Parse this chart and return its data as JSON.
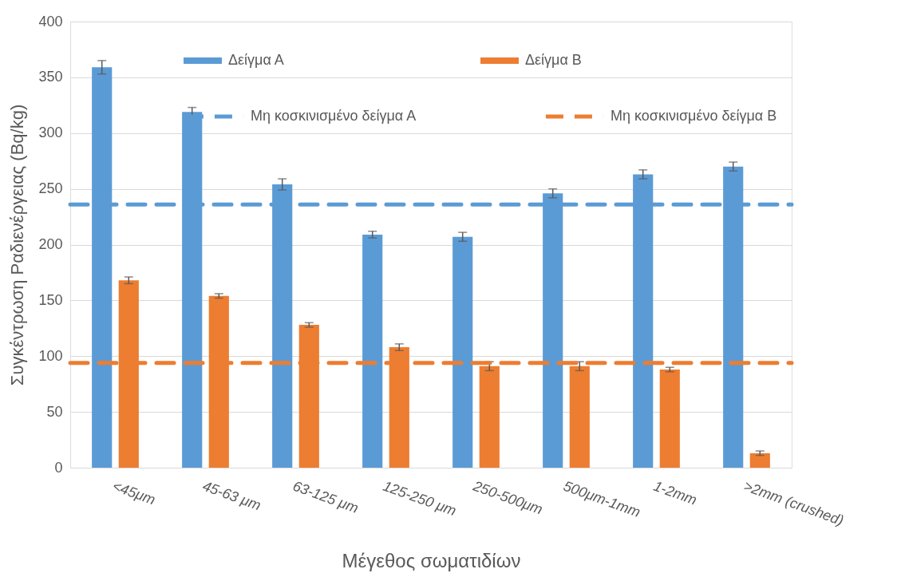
{
  "chart_data": {
    "type": "bar",
    "xlabel": "Μέγεθος σωματιδίων",
    "ylabel": "Συγκέντρωση Ραδιενέργειας (Bq/kg)",
    "categories": [
      "<45μm",
      "45-63 μm",
      "63-125 μm",
      "125-250 μm",
      "250-500μm",
      "500μm-1mm",
      "1-2mm",
      ">2mm (crushed)"
    ],
    "series": [
      {
        "name": "Δείγμα Α",
        "color": "#5b9bd5",
        "values": [
          359,
          319,
          254,
          209,
          207,
          246,
          263,
          270
        ],
        "errors": [
          6,
          4,
          5,
          3,
          4,
          4,
          4,
          4
        ]
      },
      {
        "name": "Δείγμα Β",
        "color": "#ed7d31",
        "values": [
          168,
          154,
          128,
          108,
          91,
          91,
          88,
          13
        ],
        "errors": [
          3,
          2,
          2,
          3,
          4,
          4,
          2,
          2
        ]
      }
    ],
    "ref_lines": [
      {
        "axis": "y",
        "value": 236,
        "label": "Μη κοσκινισμένο δείγμα Α",
        "color": "#5b9bd5",
        "line_style": "dashed"
      },
      {
        "axis": "y",
        "value": 94,
        "label": "Μη κοσκινισμένο δείγμα Β",
        "color": "#ed7d31",
        "line_style": "dashed"
      }
    ],
    "ylim": [
      0,
      400
    ],
    "yticks": [
      0,
      50,
      100,
      150,
      200,
      250,
      300,
      350,
      400
    ],
    "grid": "y",
    "legend": "top"
  }
}
